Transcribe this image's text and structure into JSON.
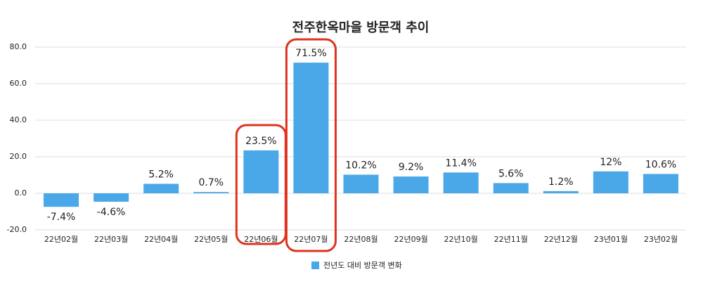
{
  "chart_data": {
    "type": "bar",
    "title": "전주한옥마을 방문객 추이",
    "categories": [
      "22년02월",
      "22년03월",
      "22년04월",
      "22년05월",
      "22년06월",
      "22년07월",
      "22년08월",
      "22년09월",
      "22년10월",
      "22년11월",
      "22년12월",
      "23년01월",
      "23년02월"
    ],
    "series": [
      {
        "name": "전년도 대비 방문객 변화",
        "color": "#4aa8e8",
        "values": [
          -7.4,
          -4.6,
          5.2,
          0.7,
          23.5,
          71.5,
          10.2,
          9.2,
          11.4,
          5.6,
          1.2,
          12,
          10.6
        ],
        "value_labels": [
          "-7.4%",
          "-4.6%",
          "5.2%",
          "0.7%",
          "23.5%",
          "71.5%",
          "10.2%",
          "9.2%",
          "11.4%",
          "5.6%",
          "1.2%",
          "12%",
          "10.6%"
        ]
      }
    ],
    "ylim": [
      -20,
      80
    ],
    "yticks": [
      {
        "value": -20,
        "label": "-20.0"
      },
      {
        "value": 0,
        "label": "0.0"
      },
      {
        "value": 20,
        "label": "20.0"
      },
      {
        "value": 40,
        "label": "40.0"
      },
      {
        "value": 60,
        "label": "60.0"
      },
      {
        "value": 80,
        "label": "80.0"
      }
    ],
    "grid": true,
    "legend": "bottom"
  }
}
